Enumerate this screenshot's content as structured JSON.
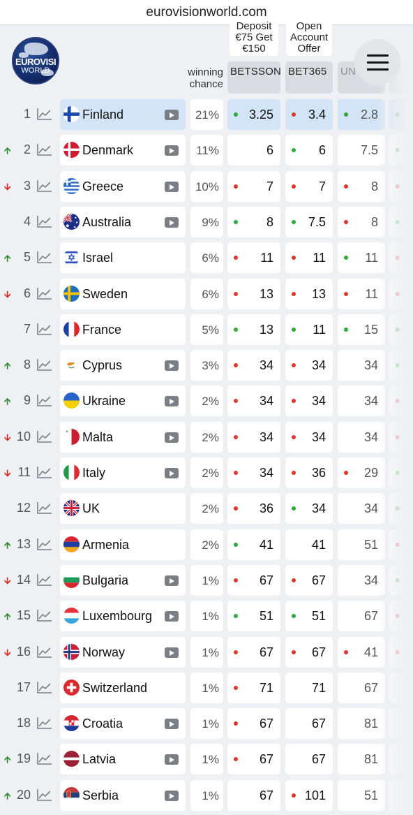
{
  "browser": {
    "url": "eurovisionworld.com"
  },
  "logo": {
    "line1": "EUROVISI",
    "line2": "WORLD"
  },
  "header": {
    "winning_chance_label": "winning chance",
    "promos": [
      {
        "text": "Deposit €75 Get €150"
      },
      {
        "text": "Open Account Offer"
      }
    ],
    "bookmakers": [
      "BETSSON",
      "BET365",
      "UN",
      ""
    ]
  },
  "colors": {
    "up": "#2f8a2f",
    "down": "#d8261c",
    "dot_green": "#2faa3a",
    "dot_red": "#e0352b",
    "highlight": "#d3e4f7"
  },
  "rows": [
    {
      "rank": "1",
      "trend": "",
      "country": "Finland",
      "flag": "finland",
      "video": true,
      "chance": "21%",
      "odds": [
        {
          "v": "3.25",
          "d": "g"
        },
        {
          "v": "3.4",
          "d": "r"
        },
        {
          "v": "2.8",
          "d": "g"
        },
        {
          "v": "",
          "d": "g"
        }
      ],
      "selected": true
    },
    {
      "rank": "2",
      "trend": "up",
      "country": "Denmark",
      "flag": "denmark",
      "video": true,
      "chance": "11%",
      "odds": [
        {
          "v": "6",
          "d": ""
        },
        {
          "v": "6",
          "d": "g"
        },
        {
          "v": "7.5",
          "d": ""
        },
        {
          "v": "",
          "d": "g"
        }
      ]
    },
    {
      "rank": "3",
      "trend": "down",
      "country": "Greece",
      "flag": "greece",
      "video": true,
      "chance": "10%",
      "odds": [
        {
          "v": "7",
          "d": "r"
        },
        {
          "v": "7",
          "d": "r"
        },
        {
          "v": "8",
          "d": "r"
        },
        {
          "v": "",
          "d": "r"
        }
      ]
    },
    {
      "rank": "4",
      "trend": "",
      "country": "Australia",
      "flag": "australia",
      "video": true,
      "chance": "9%",
      "odds": [
        {
          "v": "8",
          "d": "g"
        },
        {
          "v": "7.5",
          "d": "g"
        },
        {
          "v": "8",
          "d": "r"
        },
        {
          "v": "",
          "d": "g"
        }
      ]
    },
    {
      "rank": "5",
      "trend": "up",
      "country": "Israel",
      "flag": "israel",
      "video": false,
      "chance": "6%",
      "odds": [
        {
          "v": "11",
          "d": "r"
        },
        {
          "v": "11",
          "d": "r"
        },
        {
          "v": "11",
          "d": "g"
        },
        {
          "v": "",
          "d": "r"
        }
      ]
    },
    {
      "rank": "6",
      "trend": "down",
      "country": "Sweden",
      "flag": "sweden",
      "video": false,
      "chance": "6%",
      "odds": [
        {
          "v": "13",
          "d": "r"
        },
        {
          "v": "13",
          "d": "r"
        },
        {
          "v": "11",
          "d": "r"
        },
        {
          "v": "",
          "d": "r"
        }
      ]
    },
    {
      "rank": "7",
      "trend": "",
      "country": "France",
      "flag": "france",
      "video": false,
      "chance": "5%",
      "odds": [
        {
          "v": "13",
          "d": "g"
        },
        {
          "v": "11",
          "d": "g"
        },
        {
          "v": "15",
          "d": "g"
        },
        {
          "v": "",
          "d": "g"
        }
      ]
    },
    {
      "rank": "8",
      "trend": "up",
      "country": "Cyprus",
      "flag": "cyprus",
      "video": true,
      "chance": "3%",
      "odds": [
        {
          "v": "34",
          "d": "r"
        },
        {
          "v": "34",
          "d": "r"
        },
        {
          "v": "34",
          "d": ""
        },
        {
          "v": "",
          "d": "g"
        }
      ]
    },
    {
      "rank": "9",
      "trend": "up",
      "country": "Ukraine",
      "flag": "ukraine",
      "video": true,
      "chance": "2%",
      "odds": [
        {
          "v": "34",
          "d": "r"
        },
        {
          "v": "34",
          "d": "r"
        },
        {
          "v": "34",
          "d": ""
        },
        {
          "v": "",
          "d": "r"
        }
      ]
    },
    {
      "rank": "10",
      "trend": "down",
      "country": "Malta",
      "flag": "malta",
      "video": true,
      "chance": "2%",
      "odds": [
        {
          "v": "34",
          "d": "r"
        },
        {
          "v": "34",
          "d": "r"
        },
        {
          "v": "34",
          "d": ""
        },
        {
          "v": "",
          "d": "r"
        }
      ]
    },
    {
      "rank": "11",
      "trend": "down",
      "country": "Italy",
      "flag": "italy",
      "video": true,
      "chance": "2%",
      "odds": [
        {
          "v": "34",
          "d": "r"
        },
        {
          "v": "36",
          "d": "r"
        },
        {
          "v": "29",
          "d": "r"
        },
        {
          "v": "",
          "d": "g"
        }
      ]
    },
    {
      "rank": "12",
      "trend": "",
      "country": "UK",
      "flag": "uk",
      "video": false,
      "chance": "2%",
      "odds": [
        {
          "v": "36",
          "d": "r"
        },
        {
          "v": "34",
          "d": "g"
        },
        {
          "v": "34",
          "d": ""
        },
        {
          "v": "",
          "d": "g"
        }
      ]
    },
    {
      "rank": "13",
      "trend": "up",
      "country": "Armenia",
      "flag": "armenia",
      "video": false,
      "chance": "2%",
      "odds": [
        {
          "v": "41",
          "d": "g"
        },
        {
          "v": "41",
          "d": ""
        },
        {
          "v": "51",
          "d": ""
        },
        {
          "v": "",
          "d": "r"
        }
      ]
    },
    {
      "rank": "14",
      "trend": "down",
      "country": "Bulgaria",
      "flag": "bulgaria",
      "video": true,
      "chance": "1%",
      "odds": [
        {
          "v": "67",
          "d": "r"
        },
        {
          "v": "67",
          "d": "r"
        },
        {
          "v": "34",
          "d": ""
        },
        {
          "v": "",
          "d": "g"
        }
      ]
    },
    {
      "rank": "15",
      "trend": "up",
      "country": "Luxembourg",
      "flag": "luxembourg",
      "video": true,
      "chance": "1%",
      "odds": [
        {
          "v": "51",
          "d": "g"
        },
        {
          "v": "51",
          "d": "g"
        },
        {
          "v": "67",
          "d": ""
        },
        {
          "v": "",
          "d": "r"
        }
      ]
    },
    {
      "rank": "16",
      "trend": "down",
      "country": "Norway",
      "flag": "norway",
      "video": true,
      "chance": "1%",
      "odds": [
        {
          "v": "67",
          "d": "r"
        },
        {
          "v": "67",
          "d": "r"
        },
        {
          "v": "41",
          "d": "r"
        },
        {
          "v": "",
          "d": "r"
        }
      ]
    },
    {
      "rank": "17",
      "trend": "",
      "country": "Switzerland",
      "flag": "switzerland",
      "video": false,
      "chance": "1%",
      "odds": [
        {
          "v": "71",
          "d": "r"
        },
        {
          "v": "71",
          "d": ""
        },
        {
          "v": "67",
          "d": ""
        },
        {
          "v": "",
          "d": ""
        }
      ]
    },
    {
      "rank": "18",
      "trend": "",
      "country": "Croatia",
      "flag": "croatia",
      "video": true,
      "chance": "1%",
      "odds": [
        {
          "v": "67",
          "d": "r"
        },
        {
          "v": "67",
          "d": ""
        },
        {
          "v": "81",
          "d": ""
        },
        {
          "v": "",
          "d": ""
        }
      ]
    },
    {
      "rank": "19",
      "trend": "up",
      "country": "Latvia",
      "flag": "latvia",
      "video": true,
      "chance": "1%",
      "odds": [
        {
          "v": "67",
          "d": "r"
        },
        {
          "v": "67",
          "d": ""
        },
        {
          "v": "81",
          "d": ""
        },
        {
          "v": "",
          "d": ""
        }
      ]
    },
    {
      "rank": "20",
      "trend": "up",
      "country": "Serbia",
      "flag": "serbia",
      "video": true,
      "chance": "1%",
      "odds": [
        {
          "v": "67",
          "d": ""
        },
        {
          "v": "101",
          "d": "r"
        },
        {
          "v": "51",
          "d": ""
        },
        {
          "v": "",
          "d": ""
        }
      ]
    }
  ]
}
